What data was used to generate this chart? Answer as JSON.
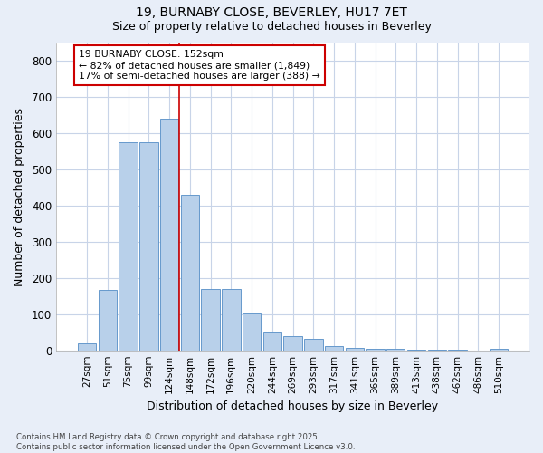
{
  "title_line1": "19, BURNABY CLOSE, BEVERLEY, HU17 7ET",
  "title_line2": "Size of property relative to detached houses in Beverley",
  "xlabel": "Distribution of detached houses by size in Beverley",
  "ylabel": "Number of detached properties",
  "categories": [
    "27sqm",
    "51sqm",
    "75sqm",
    "99sqm",
    "124sqm",
    "148sqm",
    "172sqm",
    "196sqm",
    "220sqm",
    "244sqm",
    "269sqm",
    "293sqm",
    "317sqm",
    "341sqm",
    "365sqm",
    "389sqm",
    "413sqm",
    "438sqm",
    "462sqm",
    "486sqm",
    "510sqm"
  ],
  "values": [
    20,
    168,
    575,
    575,
    640,
    430,
    170,
    170,
    102,
    52,
    40,
    33,
    12,
    6,
    4,
    3,
    2,
    1,
    1,
    0,
    5
  ],
  "bar_color": "#b8d0ea",
  "bar_edge_color": "#6699cc",
  "vline_color": "#cc0000",
  "vline_x_idx": 5,
  "annotation_line1": "19 BURNABY CLOSE: 152sqm",
  "annotation_line2": "← 82% of detached houses are smaller (1,849)",
  "annotation_line3": "17% of semi-detached houses are larger (388) →",
  "ylim": [
    0,
    850
  ],
  "yticks": [
    0,
    100,
    200,
    300,
    400,
    500,
    600,
    700,
    800
  ],
  "grid_color": "#c8d4e8",
  "bg_color": "#e8eef8",
  "plot_bg_color": "#ffffff",
  "footnote": "Contains HM Land Registry data © Crown copyright and database right 2025.\nContains public sector information licensed under the Open Government Licence v3.0."
}
